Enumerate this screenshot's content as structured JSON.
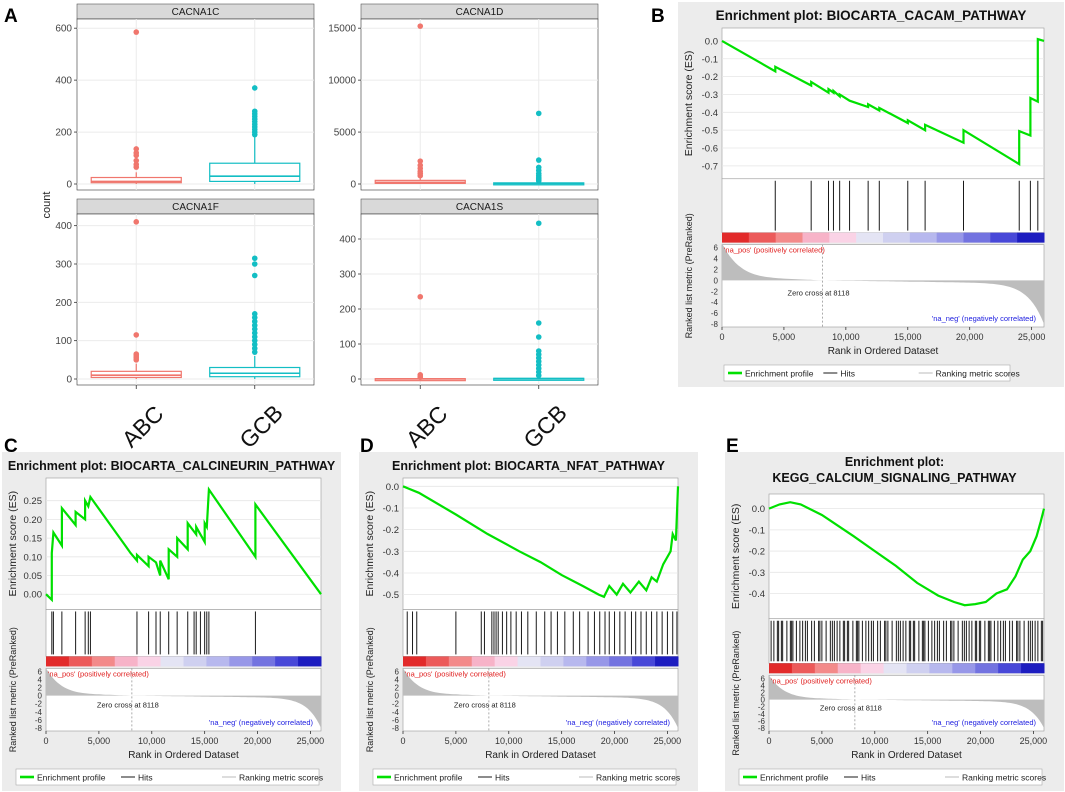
{
  "panel_letters": {
    "A": "A",
    "B": "B",
    "C": "C",
    "D": "D",
    "E": "E"
  },
  "boxplot": {
    "ylabel": "count",
    "groups": [
      "ABC",
      "GCB"
    ],
    "colors": {
      "ABC": "#f0766d",
      "GCB": "#13bec4",
      "strip": "#d9d9d9",
      "panel_bg": "#ffffff",
      "grid": "#ebebeb"
    }
  },
  "gsea_common": {
    "es_ylabel": "Enrichment score (ES)",
    "rm_ylabel": "Ranked list metric (PreRanked)",
    "xlabel": "Rank in Ordered Dataset",
    "pos_label": "'na_pos' (positively correlated)",
    "neg_label": "'na_neg' (negatively correlated)",
    "zero_cross": "Zero cross at 8118",
    "legend": [
      "Enrichment profile",
      "Hits",
      "Ranking metric scores"
    ],
    "x_ticks": [
      "0",
      "5,000",
      "10,000",
      "15,000",
      "20,000",
      "25,000"
    ],
    "rm_ticks": [
      "6",
      "4",
      "2",
      "0",
      "-2",
      "-4",
      "-6",
      "-8"
    ],
    "colors": {
      "profile": "#00e000",
      "hits": "#1a1a1a",
      "metric": "#bdbdbd",
      "pos": "#e02020",
      "neg": "#2020e0",
      "title_bg": "#ececec"
    }
  },
  "chart_data": [
    {
      "type": "box",
      "id": "A1",
      "title": "CACNA1C",
      "ylim": [
        0,
        620
      ],
      "yticks": [
        0,
        200,
        400,
        600
      ],
      "series": [
        {
          "name": "ABC",
          "q1": 5,
          "median": 10,
          "q3": 25,
          "whisker_low": 0,
          "whisker_high": 45,
          "outliers": [
            65,
            75,
            90,
            110,
            120,
            135,
            585
          ]
        },
        {
          "name": "GCB",
          "q1": 10,
          "median": 30,
          "q3": 80,
          "whisker_low": 0,
          "whisker_high": 180,
          "outliers": [
            190,
            200,
            210,
            220,
            230,
            240,
            250,
            260,
            270,
            280,
            370
          ]
        }
      ]
    },
    {
      "type": "box",
      "id": "A2",
      "title": "CACNA1D",
      "ylim": [
        0,
        15500
      ],
      "yticks": [
        0,
        5000,
        10000,
        15000
      ],
      "series": [
        {
          "name": "ABC",
          "q1": 60,
          "median": 160,
          "q3": 350,
          "whisker_low": 0,
          "whisker_high": 700,
          "outliers": [
            800,
            1000,
            1200,
            1500,
            1800,
            2200,
            15200
          ]
        },
        {
          "name": "GCB",
          "q1": 10,
          "median": 40,
          "q3": 110,
          "whisker_low": 0,
          "whisker_high": 250,
          "outliers": [
            300,
            400,
            500,
            600,
            800,
            1000,
            1300,
            1600,
            2300,
            6800
          ]
        }
      ]
    },
    {
      "type": "box",
      "id": "A3",
      "title": "CACNA1F",
      "ylim": [
        0,
        420
      ],
      "yticks": [
        0,
        100,
        200,
        300,
        400
      ],
      "series": [
        {
          "name": "ABC",
          "q1": 4,
          "median": 10,
          "q3": 20,
          "whisker_low": 0,
          "whisker_high": 40,
          "outliers": [
            50,
            55,
            60,
            65,
            115,
            410
          ]
        },
        {
          "name": "GCB",
          "q1": 6,
          "median": 15,
          "q3": 30,
          "whisker_low": 0,
          "whisker_high": 60,
          "outliers": [
            70,
            80,
            90,
            100,
            110,
            120,
            130,
            140,
            150,
            160,
            170,
            270,
            300,
            315
          ]
        }
      ]
    },
    {
      "type": "box",
      "id": "A4",
      "title": "CACNA1S",
      "ylim": [
        0,
        460
      ],
      "yticks": [
        0,
        100,
        200,
        300,
        400
      ],
      "series": [
        {
          "name": "ABC",
          "q1": 0,
          "median": 0,
          "q3": 1,
          "whisker_low": 0,
          "whisker_high": 2,
          "outliers": [
            5,
            8,
            12,
            235
          ]
        },
        {
          "name": "GCB",
          "q1": 0,
          "median": 1,
          "q3": 2,
          "whisker_low": 0,
          "whisker_high": 5,
          "outliers": [
            10,
            20,
            30,
            40,
            50,
            60,
            70,
            80,
            120,
            160,
            445
          ]
        }
      ]
    },
    {
      "type": "gsea",
      "id": "B",
      "title_lines": [
        "Enrichment plot: BIOCARTA_CACAM_PATHWAY"
      ],
      "xlim": [
        0,
        26000
      ],
      "ylim": [
        -0.75,
        0.05
      ],
      "yticks": [
        0.0,
        -0.1,
        -0.2,
        -0.3,
        -0.4,
        -0.5,
        -0.6,
        -0.7
      ],
      "ytick_labels": [
        "0.0",
        "-0.1",
        "-0.2",
        "-0.3",
        "-0.4",
        "-0.5",
        "-0.6",
        "-0.7"
      ],
      "profile": [
        [
          0,
          0
        ],
        [
          4300,
          -0.17
        ],
        [
          4300,
          -0.145
        ],
        [
          7200,
          -0.25
        ],
        [
          7200,
          -0.23
        ],
        [
          8600,
          -0.29
        ],
        [
          8600,
          -0.27
        ],
        [
          9000,
          -0.29
        ],
        [
          9000,
          -0.28
        ],
        [
          9500,
          -0.31
        ],
        [
          9500,
          -0.3
        ],
        [
          10300,
          -0.335
        ],
        [
          11800,
          -0.37
        ],
        [
          11800,
          -0.355
        ],
        [
          12700,
          -0.39
        ],
        [
          12700,
          -0.375
        ],
        [
          15000,
          -0.46
        ],
        [
          15000,
          -0.445
        ],
        [
          16400,
          -0.5
        ],
        [
          16400,
          -0.47
        ],
        [
          19500,
          -0.57
        ],
        [
          19500,
          -0.5
        ],
        [
          24000,
          -0.69
        ],
        [
          24000,
          -0.505
        ],
        [
          24900,
          -0.53
        ],
        [
          24900,
          -0.32
        ],
        [
          25500,
          -0.34
        ],
        [
          25500,
          0.01
        ],
        [
          26000,
          0.0
        ]
      ],
      "hits": [
        4300,
        7200,
        8600,
        9000,
        9500,
        10300,
        11800,
        12700,
        15000,
        16400,
        19500,
        24000,
        24900,
        25500
      ]
    },
    {
      "type": "gsea",
      "id": "C",
      "title_lines": [
        "Enrichment plot: BIOCARTA_CALCINEURIN_PATHWAY"
      ],
      "xlim": [
        0,
        26000
      ],
      "ylim": [
        -0.03,
        0.3
      ],
      "yticks": [
        0.25,
        0.2,
        0.15,
        0.1,
        0.05,
        0.0
      ],
      "ytick_labels": [
        "0.25",
        "0.20",
        "0.15",
        "0.10",
        "0.05",
        "0.00"
      ],
      "profile": [
        [
          0,
          0
        ],
        [
          550,
          -0.015
        ],
        [
          550,
          0.11
        ],
        [
          700,
          0.165
        ],
        [
          1500,
          0.13
        ],
        [
          1500,
          0.23
        ],
        [
          2800,
          0.185
        ],
        [
          2800,
          0.22
        ],
        [
          3700,
          0.2
        ],
        [
          3700,
          0.25
        ],
        [
          4000,
          0.235
        ],
        [
          4200,
          0.26
        ],
        [
          7500,
          0.13
        ],
        [
          8000,
          0.11
        ],
        [
          8600,
          0.09
        ],
        [
          8600,
          0.105
        ],
        [
          9700,
          0.075
        ],
        [
          9700,
          0.1
        ],
        [
          10400,
          0.085
        ],
        [
          10800,
          0.05
        ],
        [
          10800,
          0.09
        ],
        [
          11600,
          0.04
        ],
        [
          11600,
          0.12
        ],
        [
          12400,
          0.1
        ],
        [
          12400,
          0.15
        ],
        [
          13400,
          0.12
        ],
        [
          13400,
          0.19
        ],
        [
          14200,
          0.16
        ],
        [
          14200,
          0.18
        ],
        [
          15000,
          0.14
        ],
        [
          15000,
          0.19
        ],
        [
          15200,
          0.18
        ],
        [
          15400,
          0.28
        ],
        [
          19800,
          0.1
        ],
        [
          19800,
          0.24
        ],
        [
          26000,
          0.0
        ]
      ],
      "hits": [
        550,
        700,
        1500,
        2800,
        3700,
        4000,
        4200,
        8600,
        9700,
        10400,
        10800,
        11600,
        12400,
        13400,
        14000,
        14200,
        14600,
        15000,
        15200,
        15400,
        19800
      ]
    },
    {
      "type": "gsea",
      "id": "D",
      "title_lines": [
        "Enrichment plot: BIOCARTA_NFAT_PATHWAY"
      ],
      "xlim": [
        0,
        26000
      ],
      "ylim": [
        -0.55,
        0.02
      ],
      "yticks": [
        0.0,
        -0.1,
        -0.2,
        -0.3,
        -0.4,
        -0.5
      ],
      "ytick_labels": [
        "0.0",
        "-0.1",
        "-0.2",
        "-0.3",
        "-0.4",
        "-0.5"
      ],
      "profile": [
        [
          0,
          0
        ],
        [
          500,
          -0.01
        ],
        [
          1500,
          -0.03
        ],
        [
          5000,
          -0.13
        ],
        [
          8000,
          -0.22
        ],
        [
          11000,
          -0.3
        ],
        [
          13000,
          -0.35
        ],
        [
          15000,
          -0.41
        ],
        [
          17000,
          -0.46
        ],
        [
          18500,
          -0.5
        ],
        [
          19000,
          -0.51
        ],
        [
          19500,
          -0.46
        ],
        [
          20200,
          -0.5
        ],
        [
          20800,
          -0.45
        ],
        [
          21500,
          -0.49
        ],
        [
          22300,
          -0.44
        ],
        [
          23000,
          -0.48
        ],
        [
          23500,
          -0.42
        ],
        [
          24000,
          -0.44
        ],
        [
          24600,
          -0.36
        ],
        [
          25300,
          -0.3
        ],
        [
          25500,
          -0.22
        ],
        [
          25800,
          -0.25
        ],
        [
          26000,
          0.0
        ]
      ],
      "hits": [
        400,
        900,
        1300,
        5000,
        7400,
        7700,
        8400,
        8600,
        8800,
        9000,
        9400,
        9800,
        10200,
        10700,
        11200,
        11800,
        12600,
        13400,
        14000,
        14600,
        15300,
        16100,
        16700,
        17500,
        18100,
        18600,
        19100,
        19500,
        20000,
        20500,
        21000,
        21600,
        22000,
        22500,
        23000,
        23500,
        24000,
        24500,
        25000,
        25500,
        25900
      ]
    },
    {
      "type": "gsea",
      "id": "E",
      "title_lines": [
        "Enrichment plot:",
        "KEGG_CALCIUM_SIGNALING_PATHWAY"
      ],
      "xlim": [
        0,
        26000
      ],
      "ylim": [
        -0.5,
        0.05
      ],
      "yticks": [
        0.0,
        -0.1,
        -0.2,
        -0.3,
        -0.4
      ],
      "ytick_labels": [
        "0.0",
        "-0.1",
        "-0.2",
        "-0.3",
        "-0.4"
      ],
      "profile": [
        [
          0,
          0
        ],
        [
          1000,
          0.02
        ],
        [
          2000,
          0.03
        ],
        [
          3000,
          0.02
        ],
        [
          5000,
          -0.03
        ],
        [
          8000,
          -0.13
        ],
        [
          10000,
          -0.2
        ],
        [
          12000,
          -0.27
        ],
        [
          14000,
          -0.35
        ],
        [
          16000,
          -0.41
        ],
        [
          17500,
          -0.44
        ],
        [
          18500,
          -0.455
        ],
        [
          19500,
          -0.45
        ],
        [
          20500,
          -0.44
        ],
        [
          21500,
          -0.4
        ],
        [
          22500,
          -0.38
        ],
        [
          23300,
          -0.32
        ],
        [
          24000,
          -0.24
        ],
        [
          24700,
          -0.2
        ],
        [
          25300,
          -0.13
        ],
        [
          25700,
          -0.06
        ],
        [
          26000,
          0.0
        ]
      ],
      "hits": "dense"
    }
  ]
}
